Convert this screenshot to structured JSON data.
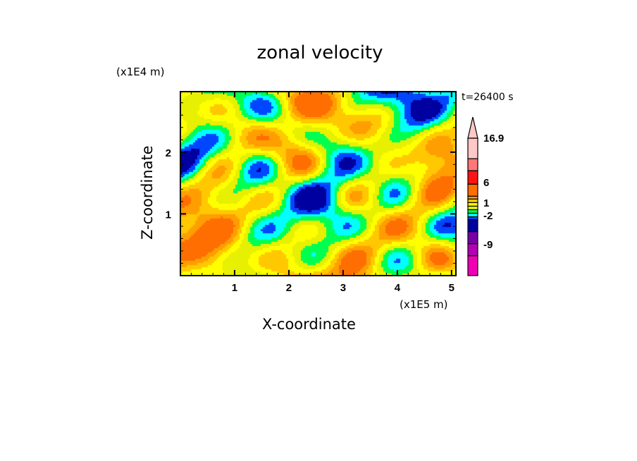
{
  "chart_data": {
    "type": "heatmap",
    "title": "zonal velocity",
    "xlabel": "X-coordinate",
    "ylabel": "Z-coordinate",
    "x_unit": "(x1E5 m)",
    "y_unit": "(x1E4 m)",
    "time_label": "t=26400 s",
    "xlim": [
      0,
      5.08
    ],
    "ylim": [
      0,
      2.98
    ],
    "xticks": [
      "1",
      "2",
      "3",
      "4",
      "5"
    ],
    "xtick_values": [
      1,
      2,
      3,
      4,
      5
    ],
    "yticks": [
      "1",
      "2"
    ],
    "ytick_values": [
      1,
      2
    ],
    "colorbar": {
      "labels": [
        "16.9",
        "6",
        "1",
        "-2",
        "-9"
      ],
      "colors": [
        "#ffc8c8",
        "#ff7878",
        "#ff1414",
        "#ff6e00",
        "#ff9e00",
        "#ffc800",
        "#ffff00",
        "#e6f000",
        "#00ff50",
        "#00ffff",
        "#0046ff",
        "#0000a0",
        "#7800a8",
        "#b400b4",
        "#f000b4"
      ],
      "extend_top": true
    }
  }
}
